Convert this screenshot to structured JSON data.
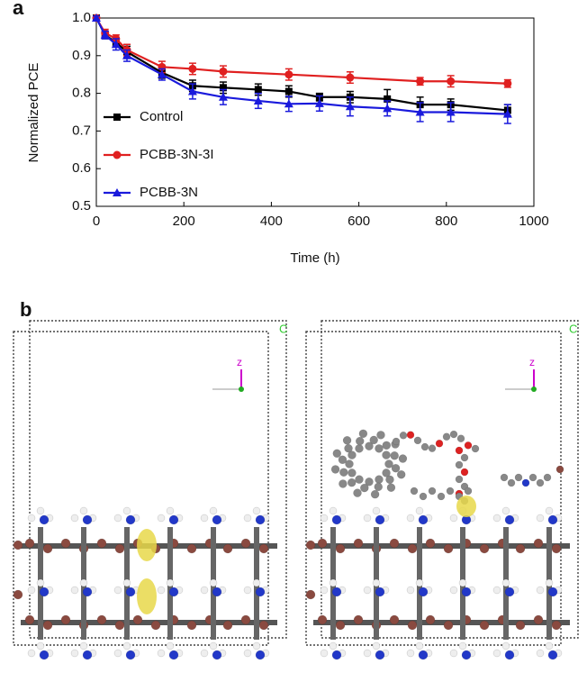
{
  "chart_data": {
    "type": "line",
    "panel_label": "a",
    "x_label": "Time (h)",
    "y_label": "Normalized PCE",
    "xlim": [
      0,
      1000
    ],
    "xticks": [
      0,
      200,
      400,
      600,
      800,
      1000
    ],
    "ylim": [
      0.5,
      1.0
    ],
    "yticks": [
      {
        "value": 0.5,
        "label": "0.5"
      },
      0.6,
      0.7,
      0.8,
      0.9,
      {
        "value": 1.0,
        "label": "1.0"
      }
    ],
    "legend": "left",
    "series": [
      {
        "name": "Control",
        "color": "#000000",
        "marker": "square",
        "x": [
          0,
          20,
          45,
          70,
          150,
          220,
          290,
          370,
          440,
          510,
          580,
          665,
          740,
          810,
          940
        ],
        "values": [
          1.0,
          0.955,
          0.935,
          0.91,
          0.855,
          0.82,
          0.815,
          0.81,
          0.805,
          0.79,
          0.79,
          0.785,
          0.77,
          0.77,
          0.755
        ],
        "errors": [
          0.005,
          0.01,
          0.01,
          0.015,
          0.015,
          0.015,
          0.015,
          0.015,
          0.015,
          0.01,
          0.015,
          0.025,
          0.02,
          0.015,
          0.015
        ]
      },
      {
        "name": "PCBB-3N-3I",
        "color": "#e02020",
        "marker": "circle",
        "x": [
          0,
          20,
          45,
          70,
          150,
          220,
          290,
          440,
          580,
          740,
          810,
          940
        ],
        "values": [
          1.0,
          0.96,
          0.945,
          0.915,
          0.87,
          0.865,
          0.858,
          0.85,
          0.842,
          0.832,
          0.832,
          0.826
        ],
        "errors": [
          0.005,
          0.01,
          0.01,
          0.015,
          0.015,
          0.015,
          0.015,
          0.015,
          0.015,
          0.01,
          0.015,
          0.01
        ]
      },
      {
        "name": "PCBB-3N",
        "color": "#1a1adc",
        "marker": "triangle",
        "x": [
          0,
          20,
          45,
          70,
          150,
          220,
          290,
          370,
          440,
          510,
          580,
          665,
          740,
          810,
          940
        ],
        "values": [
          1.0,
          0.955,
          0.93,
          0.9,
          0.85,
          0.805,
          0.79,
          0.78,
          0.772,
          0.773,
          0.765,
          0.76,
          0.75,
          0.75,
          0.745
        ],
        "errors": [
          0.005,
          0.01,
          0.015,
          0.015,
          0.015,
          0.02,
          0.02,
          0.02,
          0.02,
          0.02,
          0.025,
          0.02,
          0.025,
          0.025,
          0.025
        ]
      }
    ]
  },
  "panel_b": {
    "panel_label": "b",
    "cell_axis_left": "C",
    "cell_axis_right": "C",
    "z_left": "z",
    "z_right": "z"
  }
}
